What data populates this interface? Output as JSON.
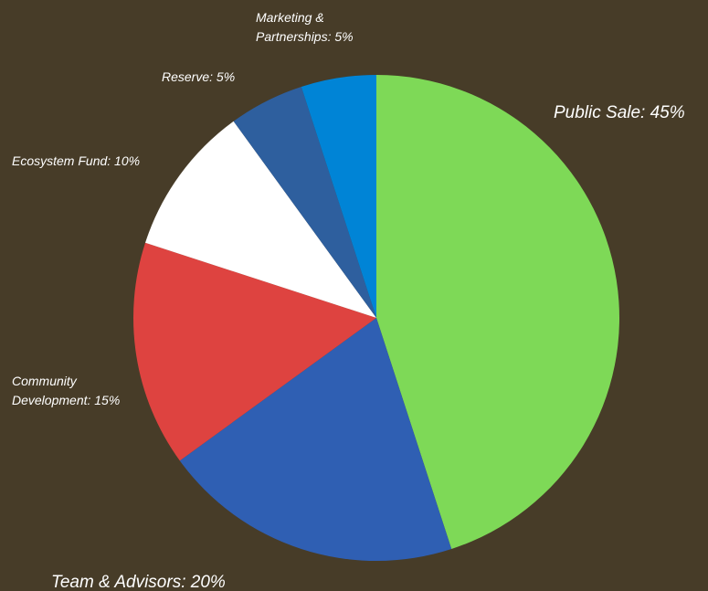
{
  "chart_data": {
    "type": "pie",
    "title": "",
    "legend": "none",
    "slices": [
      {
        "label": "Public Sale: 45%",
        "name": "Public Sale",
        "value": 45,
        "color": "#7ed957"
      },
      {
        "label": "Team & Advisors: 20%",
        "name": "Team & Advisors",
        "value": 20,
        "color": "#2f5fb3"
      },
      {
        "label": "Community Development: 15%",
        "name": "Community Development",
        "value": 15,
        "color": "#de4340"
      },
      {
        "label": "Ecosystem Fund: 10%",
        "name": "Ecosystem Fund",
        "value": 10,
        "color": "#ffffff"
      },
      {
        "label": "Reserve: 5%",
        "name": "Reserve",
        "value": 5,
        "color": "#2e5f9e"
      },
      {
        "label": "Marketing & Partnerships: 5%",
        "name": "Marketing & Partnerships",
        "value": 5,
        "color": "#0084d6"
      }
    ]
  }
}
